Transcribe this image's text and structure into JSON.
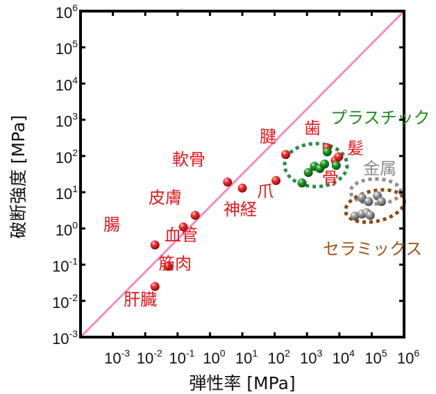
{
  "chart_data": {
    "type": "scatter",
    "xlabel": "弾性率 [MPa]",
    "ylabel": "破断強度 [MPa]",
    "x_scale": "log",
    "y_scale": "log",
    "xlim": [
      0.0001,
      1000000
    ],
    "ylim": [
      0.001,
      1000000
    ],
    "x_ticks": [
      {
        "base": "10",
        "exp": "-3",
        "value": 0.001
      },
      {
        "base": "10",
        "exp": "-2",
        "value": 0.01
      },
      {
        "base": "10",
        "exp": "-1",
        "value": 0.1
      },
      {
        "base": "10",
        "exp": "0",
        "value": 1
      },
      {
        "base": "10",
        "exp": "1",
        "value": 10
      },
      {
        "base": "10",
        "exp": "2",
        "value": 100
      },
      {
        "base": "10",
        "exp": "3",
        "value": 1000
      },
      {
        "base": "10",
        "exp": "4",
        "value": 10000
      },
      {
        "base": "10",
        "exp": "5",
        "value": 100000
      },
      {
        "base": "10",
        "exp": "6",
        "value": 1000000
      }
    ],
    "y_ticks": [
      {
        "base": "10",
        "exp": "-3",
        "value": 0.001
      },
      {
        "base": "10",
        "exp": "-2",
        "value": 0.01
      },
      {
        "base": "10",
        "exp": "-1",
        "value": 0.1
      },
      {
        "base": "10",
        "exp": "0",
        "value": 1
      },
      {
        "base": "10",
        "exp": "1",
        "value": 10
      },
      {
        "base": "10",
        "exp": "2",
        "value": 100
      },
      {
        "base": "10",
        "exp": "3",
        "value": 1000
      },
      {
        "base": "10",
        "exp": "4",
        "value": 10000
      },
      {
        "base": "10",
        "exp": "5",
        "value": 100000
      },
      {
        "base": "10",
        "exp": "6",
        "value": 1000000
      }
    ],
    "reference_line": {
      "from": [
        0.0001,
        0.001
      ],
      "to": [
        1000000,
        1000000
      ],
      "color": "#f08cc0"
    },
    "series": [
      {
        "group": "biological",
        "color": "#e8141b",
        "points": [
          {
            "x": 0.02,
            "y": 0.35
          },
          {
            "x": 0.05,
            "y": 0.09
          },
          {
            "x": 0.02,
            "y": 0.025
          },
          {
            "x": 0.15,
            "y": 1.1
          },
          {
            "x": 0.35,
            "y": 2.3
          },
          {
            "x": 3.5,
            "y": 19
          },
          {
            "x": 10,
            "y": 13
          },
          {
            "x": 110,
            "y": 21
          },
          {
            "x": 220,
            "y": 110
          },
          {
            "x": 4200,
            "y": 170
          },
          {
            "x": 7500,
            "y": 75
          },
          {
            "x": 9500,
            "y": 95
          }
        ]
      },
      {
        "group": "plastic",
        "color": "#1d8a1d",
        "points": [
          {
            "x": 700,
            "y": 18
          },
          {
            "x": 1100,
            "y": 35
          },
          {
            "x": 1700,
            "y": 52
          },
          {
            "x": 2500,
            "y": 45
          },
          {
            "x": 3500,
            "y": 60
          },
          {
            "x": 4200,
            "y": 130
          },
          {
            "x": 8000,
            "y": 55
          }
        ]
      },
      {
        "group": "metal",
        "color": "#8c8c8c",
        "points": [
          {
            "x": 50000,
            "y": 7
          },
          {
            "x": 150000,
            "y": 8
          },
          {
            "x": 80000,
            "y": 5.5
          }
        ]
      },
      {
        "group": "ceramic",
        "color": "#8c8c8c",
        "points": [
          {
            "x": 30000,
            "y": 2.2
          },
          {
            "x": 50000,
            "y": 2.5
          },
          {
            "x": 70000,
            "y": 2.7
          },
          {
            "x": 90000,
            "y": 2.3
          },
          {
            "x": 200000,
            "y": 5.5
          }
        ]
      }
    ],
    "annotations": [
      {
        "text": "腸",
        "color": "#e8141b"
      },
      {
        "text": "筋肉",
        "color": "#e8141b"
      },
      {
        "text": "肝臓",
        "color": "#e8141b"
      },
      {
        "text": "皮膚",
        "color": "#e8141b"
      },
      {
        "text": "血管",
        "color": "#e8141b"
      },
      {
        "text": "軟骨",
        "color": "#e8141b"
      },
      {
        "text": "神経",
        "color": "#e8141b"
      },
      {
        "text": "爪",
        "color": "#e8141b"
      },
      {
        "text": "腱",
        "color": "#e8141b"
      },
      {
        "text": "歯",
        "color": "#e8141b"
      },
      {
        "text": "髪",
        "color": "#e8141b"
      },
      {
        "text": "骨",
        "color": "#e8141b"
      },
      {
        "text": "プラスチック",
        "color": "#1d8a1d"
      },
      {
        "text": "金属",
        "color": "#8c8c8c"
      },
      {
        "text": "セラミックス",
        "color": "#a0521a"
      }
    ]
  }
}
